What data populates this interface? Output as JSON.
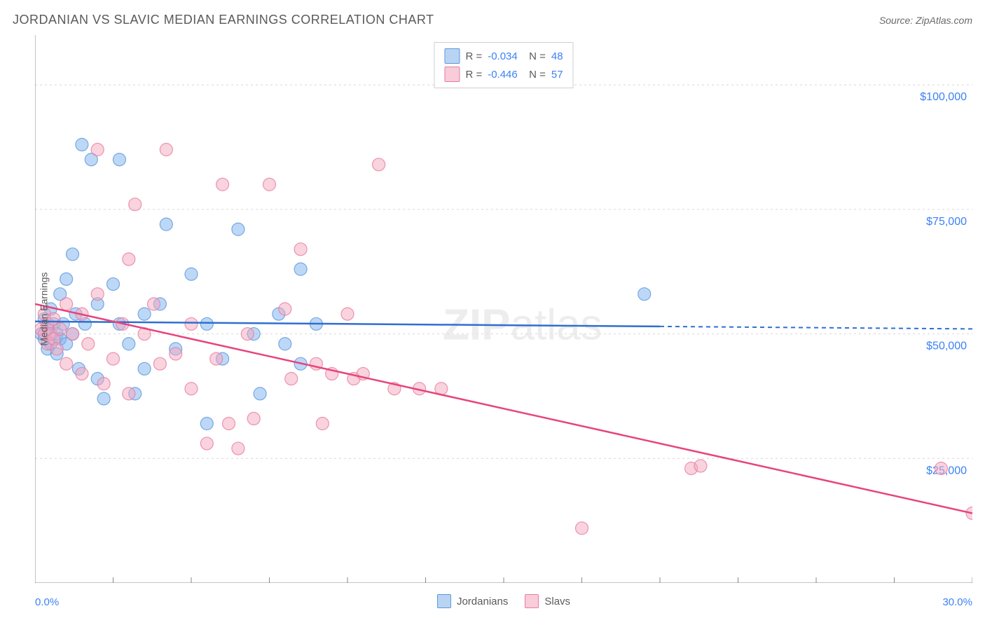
{
  "header": {
    "title": "JORDANIAN VS SLAVIC MEDIAN EARNINGS CORRELATION CHART",
    "source": "Source: ZipAtlas.com"
  },
  "watermark": "ZIPatlas",
  "chart": {
    "type": "scatter",
    "ylabel": "Median Earnings",
    "xlim": [
      0,
      30
    ],
    "ylim": [
      0,
      110000
    ],
    "x_unit": "%",
    "xtick_min_label": "0.0%",
    "xtick_max_label": "30.0%",
    "xticks": [
      0,
      2.5,
      5,
      7.5,
      10,
      12.5,
      15,
      17.5,
      20,
      22.5,
      25,
      27.5,
      30
    ],
    "yticks": [
      25000,
      50000,
      75000,
      100000
    ],
    "ytick_labels": [
      "$25,000",
      "$50,000",
      "$75,000",
      "$100,000"
    ],
    "grid_color": "#d8d8d8",
    "axis_color": "#888888",
    "background_color": "#ffffff",
    "marker_radius": 9,
    "marker_opacity": 0.5,
    "series": [
      {
        "name": "Jordanians",
        "color": "#7cb1ed",
        "stroke": "#5b97dd",
        "line_color": "#2f6fd0",
        "R": "-0.034",
        "N": "48",
        "trend": {
          "x1": 0,
          "y1": 52500,
          "x2_solid": 20,
          "y2_solid": 51500,
          "x2": 30,
          "y2": 51000
        },
        "points": [
          [
            0.2,
            50000
          ],
          [
            0.3,
            49000
          ],
          [
            0.3,
            53000
          ],
          [
            0.4,
            47000
          ],
          [
            0.4,
            51000
          ],
          [
            0.5,
            55000
          ],
          [
            0.5,
            48000
          ],
          [
            0.6,
            52000
          ],
          [
            0.7,
            50000
          ],
          [
            0.7,
            46000
          ],
          [
            0.8,
            58000
          ],
          [
            0.8,
            49000
          ],
          [
            0.9,
            52000
          ],
          [
            1.0,
            61000
          ],
          [
            1.0,
            48000
          ],
          [
            1.2,
            66000
          ],
          [
            1.2,
            50000
          ],
          [
            1.3,
            54000
          ],
          [
            1.4,
            43000
          ],
          [
            1.5,
            88000
          ],
          [
            1.6,
            52000
          ],
          [
            1.8,
            85000
          ],
          [
            2.0,
            56000
          ],
          [
            2.0,
            41000
          ],
          [
            2.2,
            37000
          ],
          [
            2.5,
            60000
          ],
          [
            2.7,
            52000
          ],
          [
            2.7,
            85000
          ],
          [
            3.0,
            48000
          ],
          [
            3.2,
            38000
          ],
          [
            3.5,
            54000
          ],
          [
            3.5,
            43000
          ],
          [
            4.0,
            56000
          ],
          [
            4.2,
            72000
          ],
          [
            4.5,
            47000
          ],
          [
            5.0,
            62000
          ],
          [
            5.5,
            52000
          ],
          [
            5.5,
            32000
          ],
          [
            6.0,
            45000
          ],
          [
            6.5,
            71000
          ],
          [
            7.0,
            50000
          ],
          [
            7.2,
            38000
          ],
          [
            7.8,
            54000
          ],
          [
            8.0,
            48000
          ],
          [
            8.5,
            63000
          ],
          [
            8.5,
            44000
          ],
          [
            9.0,
            52000
          ],
          [
            19.5,
            58000
          ]
        ]
      },
      {
        "name": "Slavs",
        "color": "#f4a8be",
        "stroke": "#e77ca0",
        "line_color": "#e8447c",
        "R": "-0.446",
        "N": "57",
        "trend": {
          "x1": 0,
          "y1": 56000,
          "x2_solid": 30,
          "y2_solid": 14000,
          "x2": 30,
          "y2": 14000
        },
        "points": [
          [
            0.2,
            51000
          ],
          [
            0.3,
            50000
          ],
          [
            0.3,
            54000
          ],
          [
            0.4,
            48000
          ],
          [
            0.4,
            52000
          ],
          [
            0.5,
            50000
          ],
          [
            0.6,
            49000
          ],
          [
            0.6,
            53000
          ],
          [
            0.7,
            47000
          ],
          [
            0.8,
            51000
          ],
          [
            1.0,
            44000
          ],
          [
            1.0,
            56000
          ],
          [
            1.2,
            50000
          ],
          [
            1.5,
            42000
          ],
          [
            1.5,
            54000
          ],
          [
            1.7,
            48000
          ],
          [
            2.0,
            58000
          ],
          [
            2.0,
            87000
          ],
          [
            2.2,
            40000
          ],
          [
            2.5,
            45000
          ],
          [
            2.8,
            52000
          ],
          [
            3.0,
            65000
          ],
          [
            3.0,
            38000
          ],
          [
            3.2,
            76000
          ],
          [
            3.5,
            50000
          ],
          [
            3.8,
            56000
          ],
          [
            4.0,
            44000
          ],
          [
            4.2,
            87000
          ],
          [
            4.5,
            46000
          ],
          [
            5.0,
            52000
          ],
          [
            5.0,
            39000
          ],
          [
            5.5,
            28000
          ],
          [
            5.8,
            45000
          ],
          [
            6.0,
            80000
          ],
          [
            6.2,
            32000
          ],
          [
            6.5,
            27000
          ],
          [
            6.8,
            50000
          ],
          [
            7.0,
            33000
          ],
          [
            7.5,
            80000
          ],
          [
            8.0,
            55000
          ],
          [
            8.2,
            41000
          ],
          [
            8.5,
            67000
          ],
          [
            9.0,
            44000
          ],
          [
            9.2,
            32000
          ],
          [
            9.5,
            42000
          ],
          [
            10.0,
            54000
          ],
          [
            10.2,
            41000
          ],
          [
            10.5,
            42000
          ],
          [
            11.0,
            84000
          ],
          [
            11.5,
            39000
          ],
          [
            12.3,
            39000
          ],
          [
            13.0,
            39000
          ],
          [
            17.5,
            11000
          ],
          [
            21.0,
            23000
          ],
          [
            21.3,
            23500
          ],
          [
            29.0,
            23000
          ],
          [
            30.0,
            14000
          ]
        ]
      }
    ],
    "legend_bottom": [
      {
        "label": "Jordanians",
        "fill": "#b9d4f2",
        "stroke": "#5b97dd"
      },
      {
        "label": "Slavs",
        "fill": "#f8ccd9",
        "stroke": "#e77ca0"
      }
    ]
  }
}
